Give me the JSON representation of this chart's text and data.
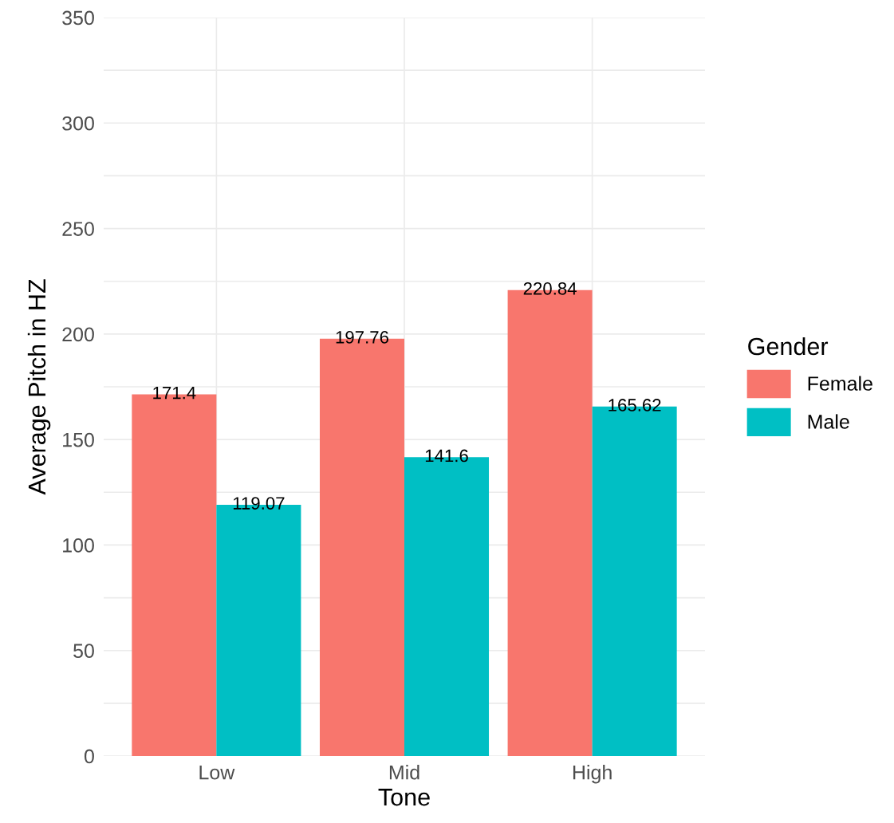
{
  "chart_data": {
    "type": "bar",
    "xlabel": "Tone",
    "ylabel": "Average Pitch in HZ",
    "legend_title": "Gender",
    "categories": [
      "Low",
      "Mid",
      "High"
    ],
    "series": [
      {
        "name": "Female",
        "color": "#f8766d",
        "values": [
          171.4,
          197.76,
          220.84
        ]
      },
      {
        "name": "Male",
        "color": "#00bfc4",
        "values": [
          119.07,
          141.6,
          165.62
        ]
      }
    ],
    "ylim": [
      0,
      350
    ],
    "yticks": [
      0,
      {
        "value": 25,
        "label": null
      },
      50,
      {
        "value": 75,
        "label": null
      },
      100,
      {
        "value": 125,
        "label": null
      },
      150,
      {
        "value": 175,
        "label": null
      },
      200,
      {
        "value": 225,
        "label": null
      },
      250,
      {
        "value": 275,
        "label": null
      },
      300,
      {
        "value": 325,
        "label": null
      },
      350
    ],
    "grid": true,
    "legend": "right",
    "data_labels": true
  }
}
